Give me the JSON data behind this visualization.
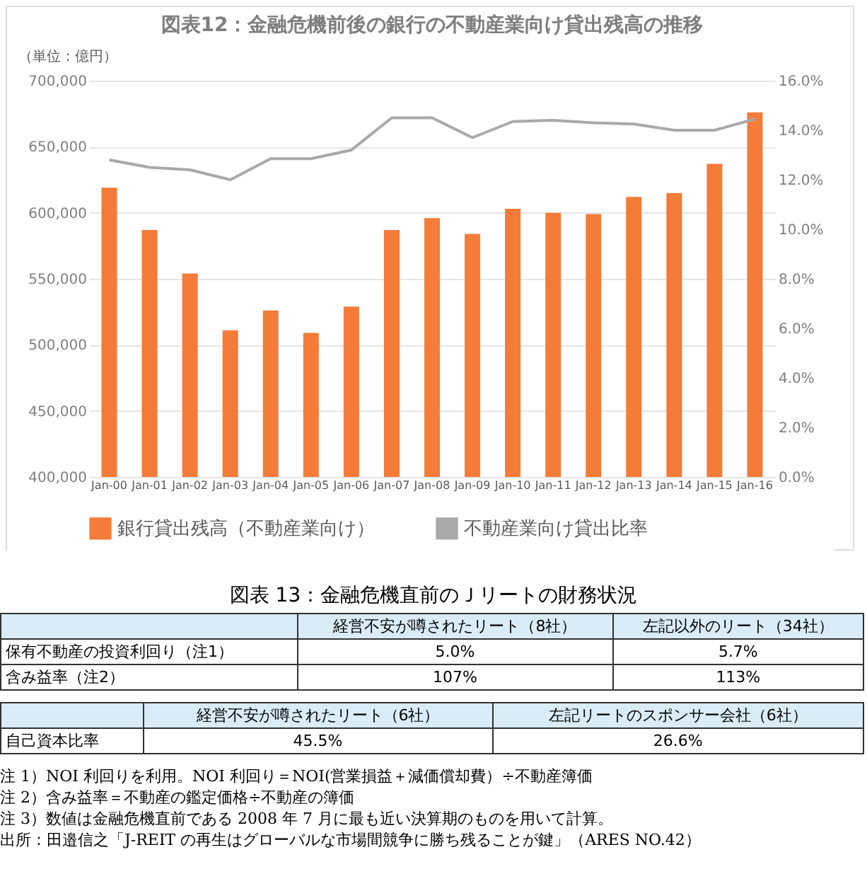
{
  "chart_data": [
    {
      "type": "bar",
      "title": "図表12：金融危機前後の銀行の不動産業向け貸出残高の推移",
      "annotations": [
        "（単位：億円）"
      ],
      "categories": [
        "Jan-00",
        "Jan-01",
        "Jan-02",
        "Jan-03",
        "Jan-04",
        "Jan-05",
        "Jan-06",
        "Jan-07",
        "Jan-08",
        "Jan-09",
        "Jan-10",
        "Jan-11",
        "Jan-12",
        "Jan-13",
        "Jan-14",
        "Jan-15",
        "Jan-16"
      ],
      "series": [
        {
          "name": "銀行貸出残高（不動産業向け）",
          "color": "#f47b38",
          "values": [
            619000,
            587000,
            554000,
            511000,
            526000,
            509000,
            529000,
            587000,
            596000,
            584000,
            603000,
            600000,
            599000,
            612000,
            615000,
            637000,
            676000
          ]
        },
        {
          "name": "不動産業向け貸出比率",
          "type": "line",
          "axis": "y2",
          "color": "#a9a9a9",
          "values": [
            12.8,
            12.5,
            12.4,
            12.0,
            12.85,
            12.85,
            13.2,
            14.5,
            14.5,
            13.7,
            14.35,
            14.4,
            14.3,
            14.25,
            14.0,
            14.0,
            14.45
          ]
        }
      ],
      "ylim": [
        400000,
        700000
      ],
      "yticks": [
        {
          "value": 400000,
          "label": "400,000"
        },
        {
          "value": 450000,
          "label": "450,000"
        },
        {
          "value": 500000,
          "label": "500,000"
        },
        {
          "value": 550000,
          "label": "550,000"
        },
        {
          "value": 600000,
          "label": "600,000"
        },
        {
          "value": 650000,
          "label": "650,000"
        },
        {
          "value": 700000,
          "label": "700,000"
        }
      ],
      "y2lim": [
        0,
        16
      ],
      "y2ticks": [
        {
          "value": 0,
          "label": "0.0%"
        },
        {
          "value": 2,
          "label": "2.0%"
        },
        {
          "value": 4,
          "label": "4.0%"
        },
        {
          "value": 6,
          "label": "6.0%"
        },
        {
          "value": 8,
          "label": "8.0%"
        },
        {
          "value": 10,
          "label": "10.0%"
        },
        {
          "value": 12,
          "label": "12.0%"
        },
        {
          "value": 14,
          "label": "14.0%"
        },
        {
          "value": 16,
          "label": "16.0%"
        }
      ],
      "grid": "y",
      "legend": "bottom"
    },
    {
      "type": "other",
      "title": "図表 13：金融危機直前のＪリートの財務状況",
      "annotations": [
        "経営不安が噂されたリート（8社）",
        "左記以外のリート（34社）",
        "保有不動産の投資利回り（注1）",
        "5.0%",
        "5.7%",
        "含み益率（注2）",
        "107%",
        "113%",
        "経営不安が噂されたリート（6社）",
        "左記リートのスポンサー会社（6社）",
        "自己資本比率",
        "45.5%",
        "26.6%",
        "注 1）NOI 利回りを利用。NOI 利回り＝NOI(営業損益＋減価償却費）÷不動産簿価",
        "注 2）含み益率＝不動産の鑑定価格÷不動産の簿価",
        "注 3）数値は金融危機直前である 2008 年 7 月に最も近い決算期のものを用いて計算。",
        "出所：田邉信之「J-REIT の再生はグローバルな市場間競争に勝ち残ることが鍵」（ARES NO.42）"
      ]
    }
  ]
}
